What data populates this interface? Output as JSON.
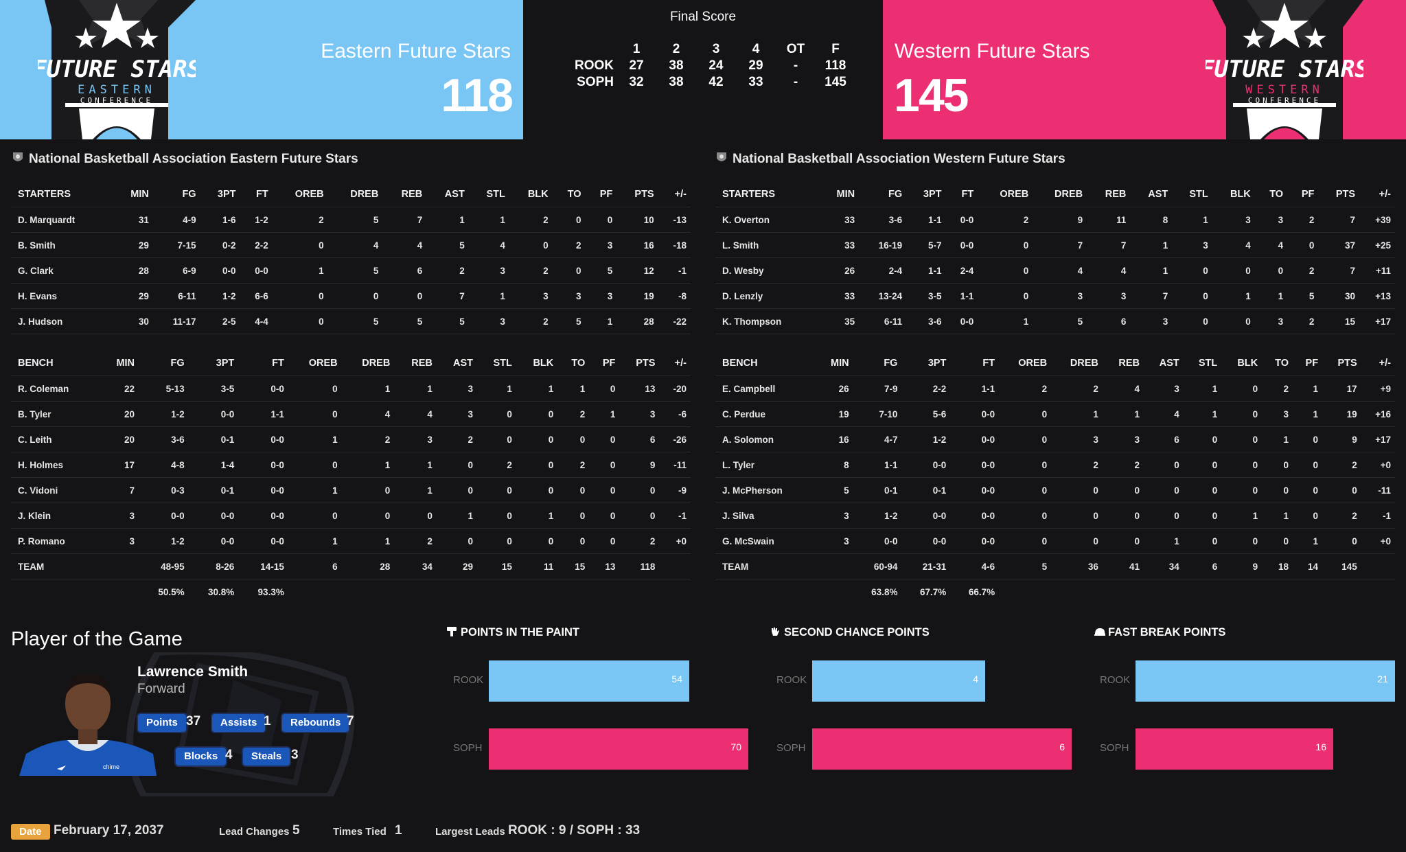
{
  "east": {
    "name": "Eastern Future Stars",
    "score": "118",
    "logo_text": "FUTURE STARS",
    "logo_sub": "EASTERN",
    "logo_conf": "CONFERENCE"
  },
  "west": {
    "name": "Western Future Stars",
    "score": "145",
    "logo_text": "FUTURE STARS",
    "logo_sub": "WESTERN",
    "logo_conf": "CONFERENCE"
  },
  "linescore": {
    "title": "Final Score",
    "periods": [
      "1",
      "2",
      "3",
      "4",
      "OT",
      "F"
    ],
    "rows": [
      {
        "team": "ROOK",
        "values": [
          "27",
          "38",
          "24",
          "29",
          "-",
          "118"
        ]
      },
      {
        "team": "SOPH",
        "values": [
          "32",
          "38",
          "42",
          "33",
          "-",
          "145"
        ]
      }
    ]
  },
  "box_east": {
    "title": "National Basketball Association Eastern Future Stars",
    "starters_label": "STARTERS",
    "bench_label": "BENCH",
    "columns": [
      "MIN",
      "FG",
      "3PT",
      "FT",
      "OREB",
      "DREB",
      "REB",
      "AST",
      "STL",
      "BLK",
      "TO",
      "PF",
      "PTS",
      "+/-"
    ],
    "starters": [
      {
        "player": "D. Marquardt",
        "stats": [
          "31",
          "4-9",
          "1-6",
          "1-2",
          "2",
          "5",
          "7",
          "1",
          "1",
          "2",
          "0",
          "0",
          "10",
          "-13"
        ]
      },
      {
        "player": "B. Smith",
        "stats": [
          "29",
          "7-15",
          "0-2",
          "2-2",
          "0",
          "4",
          "4",
          "5",
          "4",
          "0",
          "2",
          "3",
          "16",
          "-18"
        ]
      },
      {
        "player": "G. Clark",
        "stats": [
          "28",
          "6-9",
          "0-0",
          "0-0",
          "1",
          "5",
          "6",
          "2",
          "3",
          "2",
          "0",
          "5",
          "12",
          "-1"
        ]
      },
      {
        "player": "H. Evans",
        "stats": [
          "29",
          "6-11",
          "1-2",
          "6-6",
          "0",
          "0",
          "0",
          "7",
          "1",
          "3",
          "3",
          "3",
          "19",
          "-8"
        ]
      },
      {
        "player": "J. Hudson",
        "stats": [
          "30",
          "11-17",
          "2-5",
          "4-4",
          "0",
          "5",
          "5",
          "5",
          "3",
          "2",
          "5",
          "1",
          "28",
          "-22"
        ]
      }
    ],
    "bench": [
      {
        "player": "R. Coleman",
        "stats": [
          "22",
          "5-13",
          "3-5",
          "0-0",
          "0",
          "1",
          "1",
          "3",
          "1",
          "1",
          "1",
          "0",
          "13",
          "-20"
        ]
      },
      {
        "player": "B. Tyler",
        "stats": [
          "20",
          "1-2",
          "0-0",
          "1-1",
          "0",
          "4",
          "4",
          "3",
          "0",
          "0",
          "2",
          "1",
          "3",
          "-6"
        ]
      },
      {
        "player": "C. Leith",
        "stats": [
          "20",
          "3-6",
          "0-1",
          "0-0",
          "1",
          "2",
          "3",
          "2",
          "0",
          "0",
          "0",
          "0",
          "6",
          "-26"
        ]
      },
      {
        "player": "H. Holmes",
        "stats": [
          "17",
          "4-8",
          "1-4",
          "0-0",
          "0",
          "1",
          "1",
          "0",
          "2",
          "0",
          "2",
          "0",
          "9",
          "-11"
        ]
      },
      {
        "player": "C. Vidoni",
        "stats": [
          "7",
          "0-3",
          "0-1",
          "0-0",
          "1",
          "0",
          "1",
          "0",
          "0",
          "0",
          "0",
          "0",
          "0",
          "-9"
        ]
      },
      {
        "player": "J. Klein",
        "stats": [
          "3",
          "0-0",
          "0-0",
          "0-0",
          "0",
          "0",
          "0",
          "1",
          "0",
          "1",
          "0",
          "0",
          "0",
          "-1"
        ]
      },
      {
        "player": "P. Romano",
        "stats": [
          "3",
          "1-2",
          "0-0",
          "0-0",
          "1",
          "1",
          "2",
          "0",
          "0",
          "0",
          "0",
          "0",
          "2",
          "+0"
        ]
      }
    ],
    "team": {
      "player": "TEAM",
      "stats": [
        "",
        "48-95",
        "8-26",
        "14-15",
        "6",
        "28",
        "34",
        "29",
        "15",
        "11",
        "15",
        "13",
        "118",
        ""
      ]
    },
    "pct": {
      "player": "",
      "stats": [
        "",
        "50.5%",
        "30.8%",
        "93.3%",
        "",
        "",
        "",
        "",
        "",
        "",
        "",
        "",
        "",
        ""
      ]
    }
  },
  "box_west": {
    "title": "National Basketball Association Western Future Stars",
    "starters_label": "STARTERS",
    "bench_label": "BENCH",
    "columns": [
      "MIN",
      "FG",
      "3PT",
      "FT",
      "OREB",
      "DREB",
      "REB",
      "AST",
      "STL",
      "BLK",
      "TO",
      "PF",
      "PTS",
      "+/-"
    ],
    "starters": [
      {
        "player": "K. Overton",
        "stats": [
          "33",
          "3-6",
          "1-1",
          "0-0",
          "2",
          "9",
          "11",
          "8",
          "1",
          "3",
          "3",
          "2",
          "7",
          "+39"
        ]
      },
      {
        "player": "L. Smith",
        "stats": [
          "33",
          "16-19",
          "5-7",
          "0-0",
          "0",
          "7",
          "7",
          "1",
          "3",
          "4",
          "4",
          "0",
          "37",
          "+25"
        ]
      },
      {
        "player": "D. Wesby",
        "stats": [
          "26",
          "2-4",
          "1-1",
          "2-4",
          "0",
          "4",
          "4",
          "1",
          "0",
          "0",
          "0",
          "2",
          "7",
          "+11"
        ]
      },
      {
        "player": "D. Lenzly",
        "stats": [
          "33",
          "13-24",
          "3-5",
          "1-1",
          "0",
          "3",
          "3",
          "7",
          "0",
          "1",
          "1",
          "5",
          "30",
          "+13"
        ]
      },
      {
        "player": "K. Thompson",
        "stats": [
          "35",
          "6-11",
          "3-6",
          "0-0",
          "1",
          "5",
          "6",
          "3",
          "0",
          "0",
          "3",
          "2",
          "15",
          "+17"
        ]
      }
    ],
    "bench": [
      {
        "player": "E. Campbell",
        "stats": [
          "26",
          "7-9",
          "2-2",
          "1-1",
          "2",
          "2",
          "4",
          "3",
          "1",
          "0",
          "2",
          "1",
          "17",
          "+9"
        ]
      },
      {
        "player": "C. Perdue",
        "stats": [
          "19",
          "7-10",
          "5-6",
          "0-0",
          "0",
          "1",
          "1",
          "4",
          "1",
          "0",
          "3",
          "1",
          "19",
          "+16"
        ]
      },
      {
        "player": "A. Solomon",
        "stats": [
          "16",
          "4-7",
          "1-2",
          "0-0",
          "0",
          "3",
          "3",
          "6",
          "0",
          "0",
          "1",
          "0",
          "9",
          "+17"
        ]
      },
      {
        "player": "L. Tyler",
        "stats": [
          "8",
          "1-1",
          "0-0",
          "0-0",
          "0",
          "2",
          "2",
          "0",
          "0",
          "0",
          "0",
          "0",
          "2",
          "+0"
        ]
      },
      {
        "player": "J. McPherson",
        "stats": [
          "5",
          "0-1",
          "0-1",
          "0-0",
          "0",
          "0",
          "0",
          "0",
          "0",
          "0",
          "0",
          "0",
          "0",
          "-11"
        ]
      },
      {
        "player": "J. Silva",
        "stats": [
          "3",
          "1-2",
          "0-0",
          "0-0",
          "0",
          "0",
          "0",
          "0",
          "0",
          "1",
          "1",
          "0",
          "2",
          "-1"
        ]
      },
      {
        "player": "G. McSwain",
        "stats": [
          "3",
          "0-0",
          "0-0",
          "0-0",
          "0",
          "0",
          "0",
          "1",
          "0",
          "0",
          "0",
          "1",
          "0",
          "+0"
        ]
      }
    ],
    "team": {
      "player": "TEAM",
      "stats": [
        "",
        "60-94",
        "21-31",
        "4-6",
        "5",
        "36",
        "41",
        "34",
        "6",
        "9",
        "18",
        "14",
        "145",
        ""
      ]
    },
    "pct": {
      "player": "",
      "stats": [
        "",
        "63.8%",
        "67.7%",
        "66.7%",
        "",
        "",
        "",
        "",
        "",
        "",
        "",
        "",
        "",
        ""
      ]
    }
  },
  "potg": {
    "title": "Player of the Game",
    "name": "Lawrence Smith",
    "position": "Forward",
    "jersey_text": "chime",
    "stats": [
      {
        "label": "Points",
        "value": "37"
      },
      {
        "label": "Assists",
        "value": "1"
      },
      {
        "label": "Rebounds",
        "value": "7"
      },
      {
        "label": "Blocks",
        "value": "4"
      },
      {
        "label": "Steals",
        "value": "3"
      }
    ]
  },
  "chart_data": [
    {
      "type": "bar",
      "title": "POINTS IN THE PAINT",
      "categories": [
        "ROOK",
        "SOPH"
      ],
      "values": [
        54,
        70
      ],
      "xlim": [
        0,
        70
      ]
    },
    {
      "type": "bar",
      "title": "SECOND CHANCE POINTS",
      "categories": [
        "ROOK",
        "SOPH"
      ],
      "values": [
        4,
        6
      ],
      "xlim": [
        0,
        6
      ]
    },
    {
      "type": "bar",
      "title": "FAST BREAK POINTS",
      "categories": [
        "ROOK",
        "SOPH"
      ],
      "values": [
        21,
        16
      ],
      "xlim": [
        0,
        21
      ]
    }
  ],
  "footer": {
    "date_label": "Date",
    "date": "February 17, 2037",
    "lead_changes_label": "Lead Changes",
    "lead_changes": "5",
    "times_tied_label": "Times Tied",
    "times_tied": "1",
    "largest_leads_label": "Largest Leads",
    "largest_leads": "ROOK : 9 / SOPH : 33"
  },
  "colors": {
    "east": "#79c5f3",
    "west": "#ec2f73",
    "background": "#141416",
    "badge": "#e8a33d",
    "stat_tag": "#1b57b9"
  }
}
